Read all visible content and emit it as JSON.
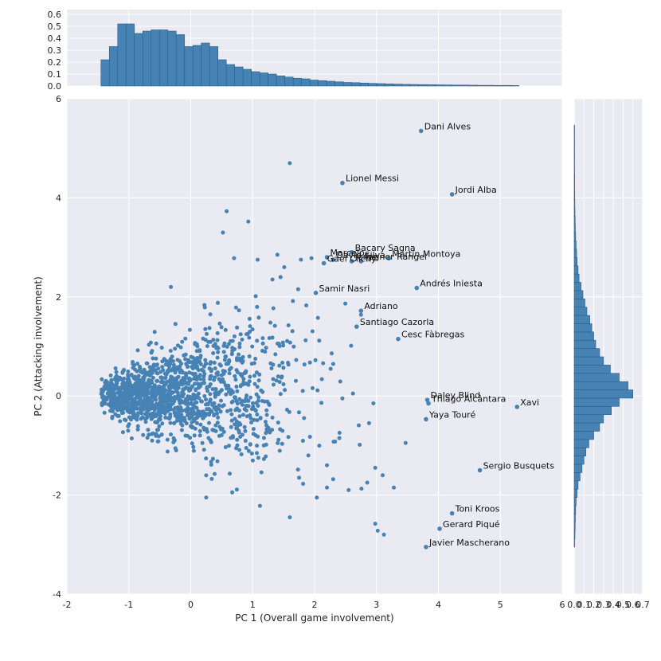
{
  "chart_data": [
    {
      "type": "scatter",
      "panel": "joint",
      "xlabel": "PC 1 (Overall game involvement)",
      "ylabel": "PC 2 (Attacking involvement)",
      "xlim": [
        -2,
        6
      ],
      "ylim": [
        -4,
        6
      ],
      "xticks": [
        -2,
        -1,
        0,
        1,
        2,
        3,
        4,
        5,
        6
      ],
      "yticks": [
        -4,
        -2,
        0,
        2,
        4,
        6
      ],
      "grid": true,
      "point_color": "#4682b4",
      "background_color": "#eaeaf2",
      "labeled_points": [
        {
          "name": "Dani Alves",
          "x": 3.72,
          "y": 5.35
        },
        {
          "name": "Lionel Messi",
          "x": 2.45,
          "y": 4.3
        },
        {
          "name": "Jordi Alba",
          "x": 4.22,
          "y": 4.07
        },
        {
          "name": "Bacary Sagna",
          "x": 2.6,
          "y": 2.9
        },
        {
          "name": "Marcelo",
          "x": 2.2,
          "y": 2.8
        },
        {
          "name": "David Silva",
          "x": 2.3,
          "y": 2.75
        },
        {
          "name": "Gael Clichy",
          "x": 2.15,
          "y": 2.68
        },
        {
          "name": "Jorge",
          "x": 2.6,
          "y": 2.72
        },
        {
          "name": "Fagner Rangel",
          "x": 2.75,
          "y": 2.72
        },
        {
          "name": "Martín Montoya",
          "x": 3.2,
          "y": 2.78
        },
        {
          "name": "Andrés Iniesta",
          "x": 3.65,
          "y": 2.18
        },
        {
          "name": "Samir Nasri",
          "x": 2.02,
          "y": 2.08
        },
        {
          "name": "Adriano",
          "x": 2.75,
          "y": 1.72
        },
        {
          "name": "Santiago Cazorla",
          "x": 2.68,
          "y": 1.4
        },
        {
          "name": "Cesc Fàbregas",
          "x": 3.35,
          "y": 1.15
        },
        {
          "name": "Daley Blind",
          "x": 3.82,
          "y": -0.08
        },
        {
          "name": "Thiago Alcântara",
          "x": 3.84,
          "y": -0.15
        },
        {
          "name": "Xavi",
          "x": 5.27,
          "y": -0.22
        },
        {
          "name": "Yaya Touré",
          "x": 3.8,
          "y": -0.47
        },
        {
          "name": "Sergio Busquets",
          "x": 4.67,
          "y": -1.5
        },
        {
          "name": "Toni Kroos",
          "x": 4.22,
          "y": -2.37
        },
        {
          "name": "Gerard Piqué",
          "x": 4.02,
          "y": -2.68
        },
        {
          "name": "Javier Mascherano",
          "x": 3.8,
          "y": -3.05
        }
      ],
      "extra_points": [
        {
          "x": 1.6,
          "y": 4.7
        },
        {
          "x": 0.58,
          "y": 3.73
        },
        {
          "x": 0.93,
          "y": 3.52
        },
        {
          "x": 0.52,
          "y": 3.3
        },
        {
          "x": 1.4,
          "y": 2.85
        },
        {
          "x": 1.08,
          "y": 2.75
        },
        {
          "x": 0.7,
          "y": 2.78
        },
        {
          "x": 1.95,
          "y": 2.78
        },
        {
          "x": 1.78,
          "y": 2.75
        },
        {
          "x": 1.45,
          "y": 2.4
        },
        {
          "x": 1.32,
          "y": 2.35
        },
        {
          "x": -0.32,
          "y": 2.2
        },
        {
          "x": 3.47,
          "y": -0.95
        },
        {
          "x": 2.98,
          "y": -1.45
        },
        {
          "x": 3.1,
          "y": -1.6
        },
        {
          "x": 3.28,
          "y": -1.85
        },
        {
          "x": 2.85,
          "y": -1.75
        },
        {
          "x": 2.98,
          "y": -2.58
        },
        {
          "x": 3.02,
          "y": -2.72
        },
        {
          "x": 3.12,
          "y": -2.8
        },
        {
          "x": 2.3,
          "y": -1.68
        },
        {
          "x": 2.55,
          "y": -1.9
        },
        {
          "x": 2.2,
          "y": -1.85
        },
        {
          "x": 1.6,
          "y": -2.45
        },
        {
          "x": 0.25,
          "y": -2.05
        },
        {
          "x": 2.45,
          "y": -0.05
        },
        {
          "x": 2.62,
          "y": 0.05
        },
        {
          "x": 2.95,
          "y": -0.15
        },
        {
          "x": 2.88,
          "y": -0.55
        },
        {
          "x": 2.4,
          "y": -0.85
        },
        {
          "x": 2.2,
          "y": -1.4
        },
        {
          "x": 1.9,
          "y": -1.2
        },
        {
          "x": 1.75,
          "y": -1.65
        }
      ],
      "cloud_count": 1500,
      "cloud_seed": 7
    },
    {
      "type": "histogram",
      "panel": "top-marginal",
      "orientation": "vertical",
      "bin_start": -1.45,
      "bin_width": 0.135,
      "values": [
        0.22,
        0.33,
        0.52,
        0.52,
        0.44,
        0.46,
        0.47,
        0.47,
        0.46,
        0.43,
        0.33,
        0.34,
        0.36,
        0.33,
        0.22,
        0.18,
        0.16,
        0.14,
        0.12,
        0.11,
        0.1,
        0.085,
        0.075,
        0.065,
        0.06,
        0.05,
        0.045,
        0.04,
        0.035,
        0.03,
        0.028,
        0.025,
        0.022,
        0.02,
        0.018,
        0.016,
        0.014,
        0.013,
        0.012,
        0.011,
        0.01,
        0.009,
        0.008,
        0.008,
        0.007,
        0.006,
        0.006,
        0.005,
        0.005,
        0.004
      ],
      "ylim": [
        0,
        0.6
      ],
      "yticks": [
        "0.0",
        "0.1",
        "0.2",
        "0.3",
        "0.4",
        "0.5",
        "0.6"
      ],
      "color": "#4682b4"
    },
    {
      "type": "histogram",
      "panel": "right-marginal",
      "orientation": "horizontal",
      "bin_start": -3.05,
      "bin_width": 0.167,
      "values": [
        0.005,
        0.008,
        0.01,
        0.012,
        0.015,
        0.02,
        0.03,
        0.04,
        0.06,
        0.08,
        0.1,
        0.12,
        0.15,
        0.2,
        0.26,
        0.3,
        0.38,
        0.46,
        0.6,
        0.55,
        0.46,
        0.37,
        0.3,
        0.26,
        0.22,
        0.2,
        0.18,
        0.16,
        0.13,
        0.11,
        0.09,
        0.07,
        0.05,
        0.04,
        0.03,
        0.025,
        0.02,
        0.015,
        0.012,
        0.01,
        0.008,
        0.007,
        0.006,
        0.005,
        0.005,
        0.004,
        0.004,
        0.003,
        0.003,
        0.003,
        0.002
      ],
      "xlim": [
        0,
        0.7
      ],
      "xticks": [
        "0.0",
        "0.1",
        "0.2",
        "0.3",
        "0.4",
        "0.5",
        "0.6",
        "0.7"
      ],
      "color": "#4682b4"
    }
  ]
}
